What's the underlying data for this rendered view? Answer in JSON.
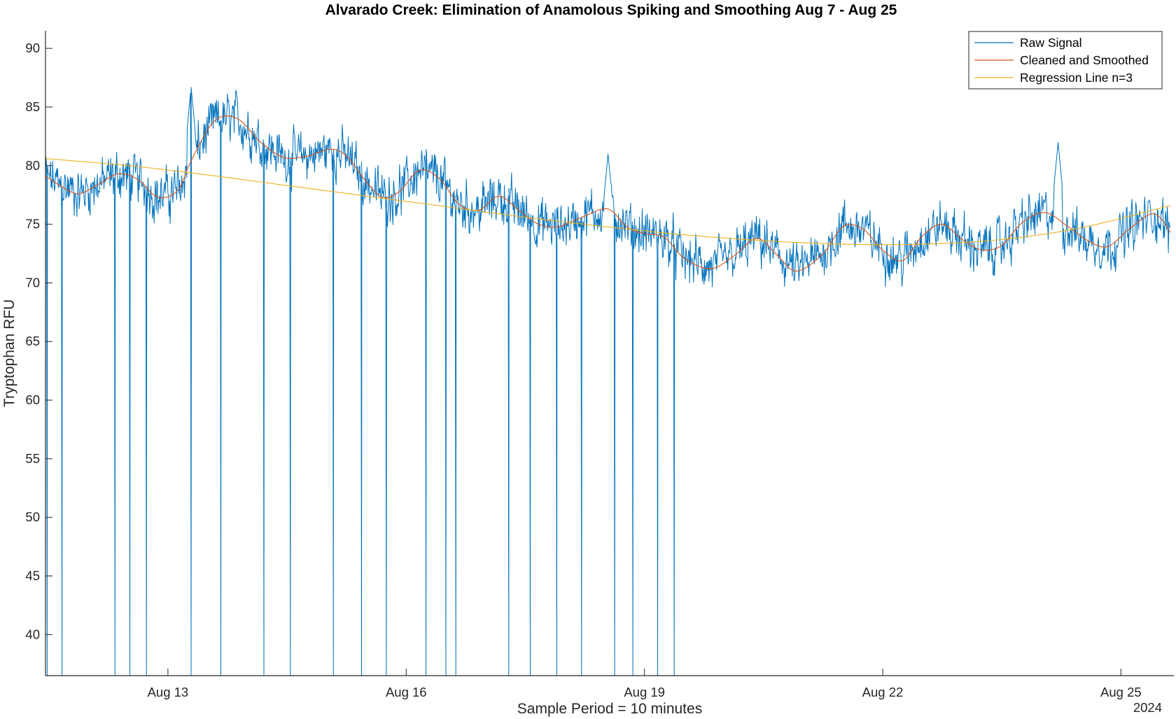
{
  "chart_data": {
    "type": "line",
    "title": "Alvarado Creek: Elimination of Anamolous Spiking and Smoothing Aug 7 - Aug 25",
    "xlabel": "Sample Period = 10 minutes",
    "ylabel": "Tryptophan RFU",
    "year_label": "2024",
    "xlim": [
      "2024-08-11 11:00",
      "2024-08-25 16:00"
    ],
    "ylim": [
      36.5,
      91.5
    ],
    "x_ticks": [
      {
        "x": "2024-08-13",
        "label": "Aug 13"
      },
      {
        "x": "2024-08-16",
        "label": "Aug 16"
      },
      {
        "x": "2024-08-19",
        "label": "Aug 19"
      },
      {
        "x": "2024-08-22",
        "label": "Aug 22"
      },
      {
        "x": "2024-08-25",
        "label": "Aug 25"
      }
    ],
    "y_ticks": [
      40,
      45,
      50,
      55,
      60,
      65,
      70,
      75,
      80,
      85,
      90
    ],
    "grid": false,
    "legend_position": "top-right",
    "series": [
      {
        "name": "Raw Signal",
        "color": "#0072BD",
        "noise_amplitude": 2.5,
        "dropout_min": 36.5,
        "dropout_times": [
          "2024-08-11 11:30",
          "2024-08-11 16:00",
          "2024-08-12 08:00",
          "2024-08-12 12:30",
          "2024-08-12 17:30",
          "2024-08-13 07:00",
          "2024-08-13 16:00",
          "2024-08-14 05:00",
          "2024-08-14 13:00",
          "2024-08-15 02:00",
          "2024-08-15 10:30",
          "2024-08-15 18:00",
          "2024-08-16 06:00",
          "2024-08-16 12:00",
          "2024-08-16 15:00",
          "2024-08-17 07:00",
          "2024-08-17 13:30",
          "2024-08-17 21:30",
          "2024-08-18 05:00",
          "2024-08-18 15:00",
          "2024-08-18 20:30",
          "2024-08-19 04:00",
          "2024-08-19 09:00"
        ],
        "peak_events": [
          {
            "x": "2024-08-13 07:00",
            "y": 86.7
          },
          {
            "x": "2024-08-18 13:00",
            "y": 81.0
          },
          {
            "x": "2024-08-24 05:00",
            "y": 82.0
          }
        ]
      },
      {
        "name": "Cleaned and Smoothed",
        "color": "#D95319",
        "x": [
          "2024-08-11 11:00",
          "2024-08-11 16:00",
          "2024-08-11 21:00",
          "2024-08-12 03:00",
          "2024-08-12 09:00",
          "2024-08-12 15:00",
          "2024-08-12 21:00",
          "2024-08-13 03:00",
          "2024-08-13 07:00",
          "2024-08-13 14:00",
          "2024-08-13 21:00",
          "2024-08-14 04:00",
          "2024-08-14 11:00",
          "2024-08-14 18:00",
          "2024-08-15 01:00",
          "2024-08-15 06:00",
          "2024-08-15 12:00",
          "2024-08-15 17:00",
          "2024-08-15 22:00",
          "2024-08-16 04:00",
          "2024-08-16 10:00",
          "2024-08-16 16:00",
          "2024-08-16 22:00",
          "2024-08-17 04:00",
          "2024-08-17 10:00",
          "2024-08-17 16:00",
          "2024-08-17 22:00",
          "2024-08-18 06:00",
          "2024-08-18 13:00",
          "2024-08-18 19:00",
          "2024-08-19 00:00",
          "2024-08-19 06:00",
          "2024-08-19 12:00",
          "2024-08-19 20:00",
          "2024-08-20 03:00",
          "2024-08-20 10:00",
          "2024-08-20 16:00",
          "2024-08-20 22:00",
          "2024-08-21 06:00",
          "2024-08-21 12:00",
          "2024-08-21 18:00",
          "2024-08-22 00:00",
          "2024-08-22 06:00",
          "2024-08-22 12:00",
          "2024-08-22 18:00",
          "2024-08-23 00:00",
          "2024-08-23 06:00",
          "2024-08-23 12:00",
          "2024-08-23 18:00",
          "2024-08-24 01:00",
          "2024-08-24 08:00",
          "2024-08-24 14:00",
          "2024-08-24 20:00",
          "2024-08-25 03:00",
          "2024-08-25 10:00",
          "2024-08-25 15:00"
        ],
        "y": [
          79.1,
          78.2,
          77.6,
          78.4,
          79.3,
          78.8,
          77.3,
          77.9,
          80.4,
          83.8,
          84.0,
          82.0,
          80.7,
          80.8,
          81.4,
          80.8,
          78.6,
          77.3,
          77.8,
          79.6,
          78.9,
          76.7,
          76.2,
          77.4,
          76.2,
          75.0,
          74.8,
          75.7,
          76.3,
          74.7,
          74.2,
          73.9,
          72.1,
          71.2,
          72.3,
          73.8,
          72.4,
          71.0,
          72.5,
          74.8,
          74.6,
          72.8,
          71.9,
          74.0,
          75.0,
          73.7,
          72.8,
          73.2,
          75.1,
          76.0,
          74.8,
          73.6,
          73.1,
          74.7,
          75.9,
          74.3
        ]
      },
      {
        "name": "Regression Line n=3",
        "color": "#EDB120",
        "x": [
          "2024-08-11 11:00",
          "2024-08-12 12:00",
          "2024-08-13 12:00",
          "2024-08-14 12:00",
          "2024-08-15 12:00",
          "2024-08-16 12:00",
          "2024-08-17 12:00",
          "2024-08-18 12:00",
          "2024-08-19 12:00",
          "2024-08-20 12:00",
          "2024-08-21 12:00",
          "2024-08-22 12:00",
          "2024-08-23 12:00",
          "2024-08-24 12:00",
          "2024-08-25 15:00"
        ],
        "y": [
          80.6,
          80.0,
          79.2,
          78.3,
          77.4,
          76.5,
          75.6,
          74.8,
          74.1,
          73.6,
          73.3,
          73.3,
          73.7,
          74.7,
          76.6
        ]
      }
    ]
  }
}
